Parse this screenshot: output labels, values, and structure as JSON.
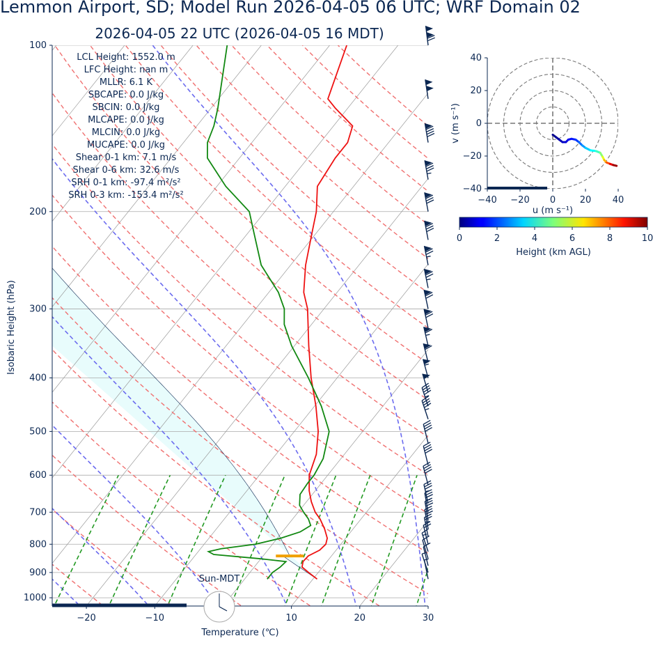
{
  "title": "Lemmon Airport, SD; Model Run 2026-04-05 06 UTC; WRF Domain 02",
  "subtitle": "2026-04-05 22 UTC  (2026-04-05 16 MDT)",
  "clock_label": "Sun-MDT",
  "indices": [
    "LCL Height: 1552.0 m",
    "LFC Height: nan m",
    "MLLR: 6.1 K",
    "SBCAPE: 0.0 J/kg",
    "SBCIN: 0.0 J/kg",
    "MLCAPE: 0.0 J/kg",
    "MLCIN: 0.0 J/kg",
    "MUCAPE: 0.0 J/kg",
    "Shear 0-1 km: 7.1 m/s",
    "Shear 0-6 km: 32.6 m/s",
    "SRH 0-1 km: -97.4 m²/s²",
    "SRH 0-3 km: -153.4 m²/s²"
  ],
  "chart_data": [
    {
      "type": "line",
      "subtype": "skew-T log-p",
      "xlabel": "Temperature (℃)",
      "ylabel": "Isobaric Height (hPa)",
      "xlim": [
        -25,
        30
      ],
      "ylim": [
        1035,
        100
      ],
      "log_y": true,
      "x_ticks": [
        -20,
        -10,
        0,
        10,
        20,
        30
      ],
      "y_ticks": [
        100,
        200,
        300,
        400,
        500,
        600,
        700,
        800,
        900,
        1000
      ],
      "colors": {
        "temperature": "#ee1111",
        "dewpoint": "#118811",
        "lcl": "#f0a000",
        "cape_fill": "#e8fcfc",
        "dry_adiabat": "#f07070",
        "moist_adiabat": "#6b6bef",
        "mixing_ratio": "#229922",
        "isotherm": "#999999",
        "barb": "#0b2752"
      },
      "series": [
        {
          "name": "",
          "key": "temperature",
          "points": [
            [
              925,
              10.6
            ],
            [
              900,
              8.6
            ],
            [
              880,
              7.0
            ],
            [
              860,
              6.5
            ],
            [
              840,
              6.6
            ],
            [
              820,
              7.6
            ],
            [
              800,
              7.8
            ],
            [
              780,
              7.3
            ],
            [
              750,
              5.8
            ],
            [
              720,
              4.0
            ],
            [
              700,
              2.5
            ],
            [
              670,
              0.7
            ],
            [
              640,
              -0.9
            ],
            [
              600,
              -2.7
            ],
            [
              550,
              -4.1
            ],
            [
              500,
              -6.5
            ],
            [
              450,
              -9.8
            ],
            [
              400,
              -13.8
            ],
            [
              350,
              -17.9
            ],
            [
              300,
              -22.4
            ],
            [
              280,
              -24.9
            ],
            [
              250,
              -27.8
            ],
            [
              220,
              -30.5
            ],
            [
              200,
              -32.5
            ],
            [
              180,
              -35.3
            ],
            [
              160,
              -36.0
            ],
            [
              150,
              -36.0
            ],
            [
              140,
              -37.2
            ],
            [
              130,
              -41.8
            ],
            [
              125,
              -44.0
            ],
            [
              100,
              -47.5
            ]
          ]
        },
        {
          "name": "",
          "key": "dewpoint",
          "points": [
            [
              925,
              3.3
            ],
            [
              900,
              3.3
            ],
            [
              880,
              3.8
            ],
            [
              860,
              4.0
            ],
            [
              850,
              0.0
            ],
            [
              835,
              -7.4
            ],
            [
              825,
              -8.5
            ],
            [
              815,
              -7.0
            ],
            [
              800,
              -2.5
            ],
            [
              780,
              0.5
            ],
            [
              760,
              2.6
            ],
            [
              740,
              3.4
            ],
            [
              720,
              2.3
            ],
            [
              700,
              0.8
            ],
            [
              680,
              -0.6
            ],
            [
              650,
              -1.8
            ],
            [
              620,
              -2.0
            ],
            [
              600,
              -2.0
            ],
            [
              560,
              -2.6
            ],
            [
              500,
              -4.9
            ],
            [
              450,
              -9.0
            ],
            [
              400,
              -14.2
            ],
            [
              350,
              -20.4
            ],
            [
              320,
              -24.0
            ],
            [
              300,
              -25.8
            ],
            [
              280,
              -28.6
            ],
            [
              250,
              -34.3
            ],
            [
              220,
              -38.9
            ],
            [
              200,
              -42.3
            ],
            [
              180,
              -48.7
            ],
            [
              160,
              -54.7
            ],
            [
              150,
              -56.5
            ],
            [
              140,
              -57.5
            ],
            [
              130,
              -59.0
            ],
            [
              100,
              -65.0
            ]
          ]
        }
      ],
      "lcl": {
        "pressure": 840,
        "temperature": 3.9
      },
      "wind_barbs": [
        {
          "p": 100,
          "u": 15,
          "v": -120
        },
        {
          "p": 125,
          "u": 15,
          "v": -100
        },
        {
          "p": 150,
          "u": 15,
          "v": -90
        },
        {
          "p": 175,
          "u": 15,
          "v": -85
        },
        {
          "p": 200,
          "u": 15,
          "v": -80
        },
        {
          "p": 225,
          "u": 15,
          "v": -80
        },
        {
          "p": 250,
          "u": 15,
          "v": -75
        },
        {
          "p": 275,
          "u": 15,
          "v": -75
        },
        {
          "p": 300,
          "u": 15,
          "v": -70
        },
        {
          "p": 325,
          "u": 15,
          "v": -70
        },
        {
          "p": 350,
          "u": 15,
          "v": -65
        },
        {
          "p": 375,
          "u": 15,
          "v": -60
        },
        {
          "p": 400,
          "u": 15,
          "v": -55
        },
        {
          "p": 425,
          "u": 15,
          "v": -50
        },
        {
          "p": 450,
          "u": 15,
          "v": -45
        },
        {
          "p": 475,
          "u": 15,
          "v": -45
        },
        {
          "p": 525,
          "u": 10,
          "v": -40
        },
        {
          "p": 575,
          "u": 10,
          "v": -40
        },
        {
          "p": 625,
          "u": 10,
          "v": -38
        },
        {
          "p": 675,
          "u": 8,
          "v": -36
        },
        {
          "p": 700,
          "u": 6,
          "v": -34
        },
        {
          "p": 725,
          "u": 5,
          "v": -30
        },
        {
          "p": 750,
          "u": 5,
          "v": -28
        },
        {
          "p": 775,
          "u": 5,
          "v": -25
        },
        {
          "p": 800,
          "u": 5,
          "v": -20
        },
        {
          "p": 825,
          "u": 5,
          "v": -15
        },
        {
          "p": 850,
          "u": 3,
          "v": -10
        },
        {
          "p": 875,
          "u": 2,
          "v": -8
        },
        {
          "p": 900,
          "u": 2,
          "v": -6
        },
        {
          "p": 925,
          "u": 1,
          "v": -5
        }
      ]
    },
    {
      "type": "line",
      "subtype": "hodograph",
      "xlabel": "u (m s⁻¹)",
      "ylabel": "v (m s⁻¹)",
      "xlim": [
        -40,
        40
      ],
      "ylim": [
        -40,
        40
      ],
      "x_ticks": [
        -40,
        -20,
        0,
        20,
        40
      ],
      "y_ticks": [
        -40,
        -20,
        0,
        20,
        40
      ],
      "ring_radii": [
        10,
        20,
        30,
        40
      ],
      "points": [
        {
          "u": 0.0,
          "v": -7.0,
          "h": 0.05
        },
        {
          "u": 2.0,
          "v": -8.5,
          "h": 0.2
        },
        {
          "u": 4.0,
          "v": -10.0,
          "h": 0.4
        },
        {
          "u": 6.0,
          "v": -11.5,
          "h": 0.6
        },
        {
          "u": 8.0,
          "v": -11.5,
          "h": 0.8
        },
        {
          "u": 9.5,
          "v": -10.0,
          "h": 1.0
        },
        {
          "u": 11.5,
          "v": -9.5,
          "h": 1.3
        },
        {
          "u": 14.0,
          "v": -10.0,
          "h": 1.6
        },
        {
          "u": 16.0,
          "v": -11.5,
          "h": 2.0
        },
        {
          "u": 18.0,
          "v": -13.5,
          "h": 2.5
        },
        {
          "u": 20.0,
          "v": -15.0,
          "h": 3.0
        },
        {
          "u": 23.0,
          "v": -16.5,
          "h": 3.5
        },
        {
          "u": 26.5,
          "v": -17.0,
          "h": 4.0
        },
        {
          "u": 29.0,
          "v": -18.0,
          "h": 4.7
        },
        {
          "u": 30.5,
          "v": -20.5,
          "h": 5.5
        },
        {
          "u": 31.5,
          "v": -22.5,
          "h": 6.5
        },
        {
          "u": 33.0,
          "v": -24.0,
          "h": 7.5
        },
        {
          "u": 35.0,
          "v": -24.8,
          "h": 8.5
        },
        {
          "u": 37.0,
          "v": -25.5,
          "h": 9.4
        },
        {
          "u": 39.0,
          "v": -26.0,
          "h": 10.0
        }
      ]
    }
  ],
  "colorbar": {
    "label": "Height (km AGL)",
    "ticks": [
      0,
      2,
      4,
      6,
      8,
      10
    ],
    "colormap": "jet"
  }
}
